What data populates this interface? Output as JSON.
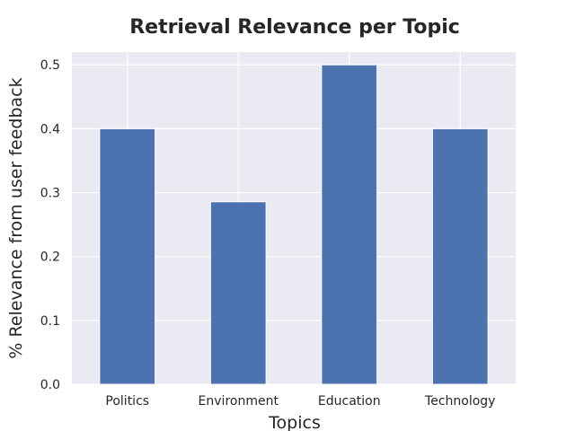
{
  "chart_data": {
    "type": "bar",
    "title": "Retrieval Relevance per Topic",
    "xlabel": "Topics",
    "ylabel": "% Relevance from user feedback",
    "categories": [
      "Politics",
      "Environment",
      "Education",
      "Technology"
    ],
    "values": [
      0.4,
      0.2857,
      0.5,
      0.4
    ],
    "ylim": [
      0,
      0.52
    ],
    "yticks": [
      0.0,
      0.1,
      0.2,
      0.3,
      0.4,
      0.5
    ],
    "ytick_labels": [
      "0.0",
      "0.1",
      "0.2",
      "0.3",
      "0.4",
      "0.5"
    ],
    "grid": true,
    "legend": "none",
    "colors": {
      "bar": "#4c72b0",
      "plot_background": "#eaeaf2",
      "grid": "#ffffff",
      "text": "#262626"
    }
  }
}
